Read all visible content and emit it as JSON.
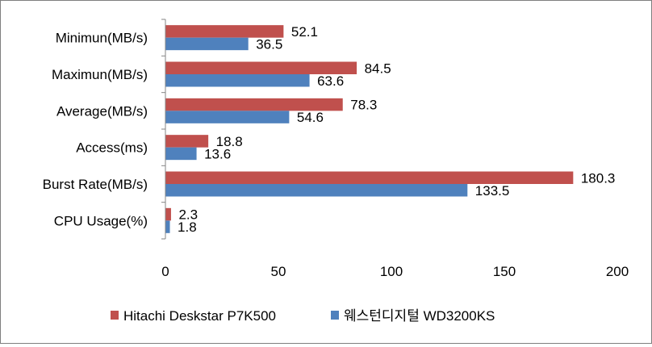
{
  "chart_data": {
    "type": "bar",
    "orientation": "horizontal",
    "categories": [
      "Minimun(MB/s)",
      "Maximun(MB/s)",
      "Average(MB/s)",
      "Access(ms)",
      "Burst Rate(MB/s)",
      "CPU Usage(%)"
    ],
    "series": [
      {
        "name": "Hitachi Deskstar P7K500",
        "color": "#c0504d",
        "values": [
          52.1,
          84.5,
          78.3,
          18.8,
          180.3,
          2.3
        ]
      },
      {
        "name": "웨스턴디지털 WD3200KS",
        "color": "#4f81bd",
        "values": [
          36.5,
          63.6,
          54.6,
          13.6,
          133.5,
          1.8
        ]
      }
    ],
    "value_labels": [
      [
        "52.1",
        "84.5",
        "78.3",
        "18.8",
        "180.3",
        "2.3"
      ],
      [
        "36.5",
        "63.6",
        "54.6",
        "13.6",
        "133.5",
        "1.8"
      ]
    ],
    "xlim": [
      0,
      200
    ],
    "xticks": [
      "0",
      "50",
      "100",
      "150",
      "200"
    ],
    "grid": false,
    "legend_position": "bottom"
  }
}
